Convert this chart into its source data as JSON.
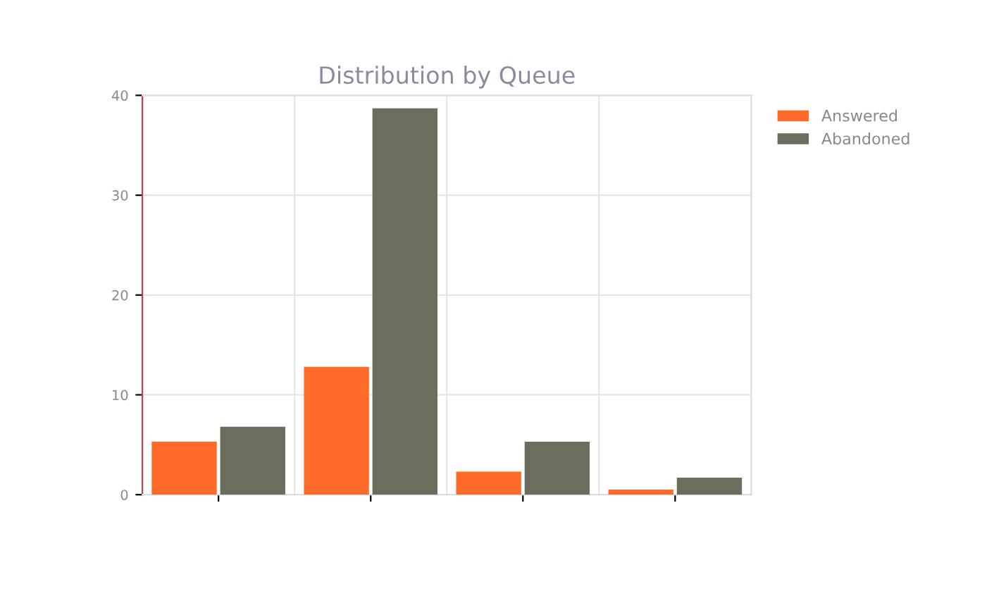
{
  "chart_data": {
    "type": "bar",
    "title": "Distribution by Queue",
    "categories": [
      null,
      null,
      null,
      null
    ],
    "series": [
      {
        "name": "Answered",
        "color": "#ff6a2a",
        "values": [
          5.3,
          12.8,
          2.3,
          0.5
        ]
      },
      {
        "name": "Abandoned",
        "color": "#6b6e5c",
        "values": [
          6.8,
          38.7,
          5.3,
          1.7
        ]
      }
    ],
    "ylim": [
      0,
      40
    ],
    "yticks": [
      0,
      10,
      20,
      30,
      40
    ],
    "grid": true,
    "legend": "top right"
  }
}
